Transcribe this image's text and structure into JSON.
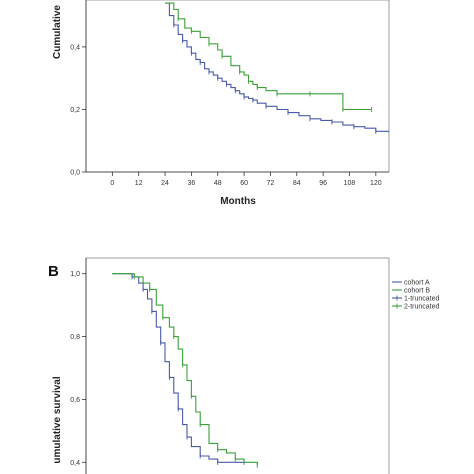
{
  "chart_data": [
    {
      "type": "line",
      "panel": "",
      "title": "",
      "xlabel": "Months",
      "ylabel": "Cumulative",
      "xlim": [
        -12,
        126
      ],
      "ylim": [
        0,
        0.55
      ],
      "x_ticks": [
        0,
        12,
        24,
        36,
        48,
        60,
        72,
        84,
        96,
        108,
        120
      ],
      "y_ticks": [
        0.0,
        0.2,
        0.4
      ],
      "x_tick_labels": [
        "0",
        "12",
        "24",
        "36",
        "48",
        "60",
        "72",
        "84",
        "96",
        "108",
        "120"
      ],
      "y_tick_labels": [
        "0,0",
        "0,2",
        "0,4"
      ],
      "grid": false,
      "series": [
        {
          "color": "#4a5aa8",
          "censor_marks": true,
          "x": [
            24,
            26,
            28,
            30,
            32,
            34,
            36,
            38,
            40,
            42,
            44,
            46,
            48,
            50,
            52,
            54,
            56,
            58,
            60,
            62,
            64,
            66,
            70,
            75,
            80,
            85,
            90,
            95,
            100,
            105,
            110,
            115,
            120,
            126
          ],
          "y": [
            0.54,
            0.5,
            0.47,
            0.44,
            0.42,
            0.4,
            0.38,
            0.36,
            0.35,
            0.33,
            0.32,
            0.31,
            0.3,
            0.29,
            0.28,
            0.27,
            0.26,
            0.25,
            0.24,
            0.235,
            0.23,
            0.22,
            0.21,
            0.2,
            0.19,
            0.18,
            0.17,
            0.165,
            0.16,
            0.15,
            0.145,
            0.14,
            0.13,
            0.125
          ]
        },
        {
          "color": "#3aa13a",
          "censor_marks": true,
          "x": [
            24,
            28,
            30,
            33,
            36,
            40,
            44,
            48,
            50,
            54,
            58,
            60,
            62,
            64,
            66,
            70,
            75,
            80,
            90,
            100,
            105,
            110,
            118
          ],
          "y": [
            0.54,
            0.52,
            0.49,
            0.46,
            0.45,
            0.43,
            0.41,
            0.39,
            0.37,
            0.34,
            0.32,
            0.31,
            0.29,
            0.28,
            0.27,
            0.26,
            0.25,
            0.25,
            0.25,
            0.25,
            0.2,
            0.2,
            0.2
          ]
        }
      ]
    },
    {
      "type": "line",
      "panel": "B",
      "title": "",
      "xlabel": "",
      "ylabel": "umulative survival",
      "xlim": [
        -12,
        126
      ],
      "ylim": [
        0.35,
        1.05
      ],
      "y_ticks": [
        0.4,
        0.6,
        0.8,
        1.0
      ],
      "y_tick_labels": [
        "0,4",
        "0,6",
        "0,8",
        "1,0"
      ],
      "grid": false,
      "legend": {
        "placement": "top-right",
        "entries": [
          {
            "label": "cohort A",
            "color": "#4a5aa8",
            "style": "line"
          },
          {
            "label": "cohort B",
            "color": "#3aa13a",
            "style": "line"
          },
          {
            "label": "1-truncated",
            "color": "#4a5aa8",
            "style": "censor"
          },
          {
            "label": "2-truncated",
            "color": "#3aa13a",
            "style": "censor"
          }
        ]
      },
      "series": [
        {
          "color": "#4a5aa8",
          "censor_marks": true,
          "x": [
            0,
            6,
            9,
            12,
            14,
            16,
            18,
            20,
            22,
            24,
            26,
            28,
            30,
            32,
            34,
            36,
            40,
            44,
            48,
            52,
            60
          ],
          "y": [
            1.0,
            1.0,
            0.99,
            0.97,
            0.95,
            0.92,
            0.88,
            0.83,
            0.78,
            0.72,
            0.67,
            0.62,
            0.57,
            0.52,
            0.48,
            0.45,
            0.42,
            0.41,
            0.4,
            0.4,
            0.4
          ]
        },
        {
          "color": "#3aa13a",
          "censor_marks": true,
          "x": [
            0,
            6,
            10,
            14,
            17,
            20,
            23,
            26,
            28,
            30,
            32,
            34,
            36,
            38,
            40,
            44,
            48,
            52,
            56,
            60,
            66
          ],
          "y": [
            1.0,
            1.0,
            0.99,
            0.97,
            0.95,
            0.9,
            0.86,
            0.83,
            0.8,
            0.76,
            0.71,
            0.66,
            0.61,
            0.56,
            0.52,
            0.46,
            0.44,
            0.43,
            0.41,
            0.4,
            0.39
          ]
        }
      ]
    }
  ]
}
